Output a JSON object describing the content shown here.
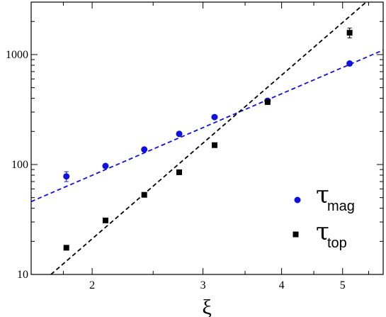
{
  "chart_data": {
    "type": "scatter",
    "title": "",
    "xlabel": "ξ",
    "ylabel": "",
    "xscale": "log",
    "yscale": "log",
    "xlim": [
      1.6,
      5.8
    ],
    "ylim": [
      10,
      3000
    ],
    "x_ticks": [
      2,
      3,
      4,
      5
    ],
    "y_ticks": [
      10,
      100,
      1000
    ],
    "grid": false,
    "legend_position": "bottom-right",
    "series": [
      {
        "legend_symbol": "τ",
        "legend_subscript": "mag",
        "marker": "circle",
        "color": "#1010e0",
        "x": [
          1.82,
          2.1,
          2.42,
          2.75,
          3.13,
          3.8,
          5.13
        ],
        "y": [
          78,
          97,
          137,
          190,
          270,
          380,
          830
        ],
        "yerr": [
          8,
          0,
          0,
          0,
          0,
          0,
          0
        ],
        "fit": {
          "type": "power-law",
          "color": "#1010e0",
          "style": "dashed",
          "x": [
            1.6,
            5.8
          ],
          "y": [
            46,
            1100
          ]
        }
      },
      {
        "legend_symbol": "τ",
        "legend_subscript": "top",
        "marker": "square",
        "color": "#000000",
        "x": [
          1.82,
          2.1,
          2.42,
          2.75,
          3.13,
          3.8,
          5.13
        ],
        "y": [
          17.5,
          31,
          53,
          85,
          150,
          370,
          1580
        ],
        "yerr": [
          0,
          0,
          0,
          0,
          0,
          0,
          160
        ],
        "fit": {
          "type": "power-law",
          "color": "#000000",
          "style": "dashed",
          "x": [
            1.72,
            5.45
          ],
          "y": [
            10,
            3000
          ]
        }
      }
    ]
  }
}
